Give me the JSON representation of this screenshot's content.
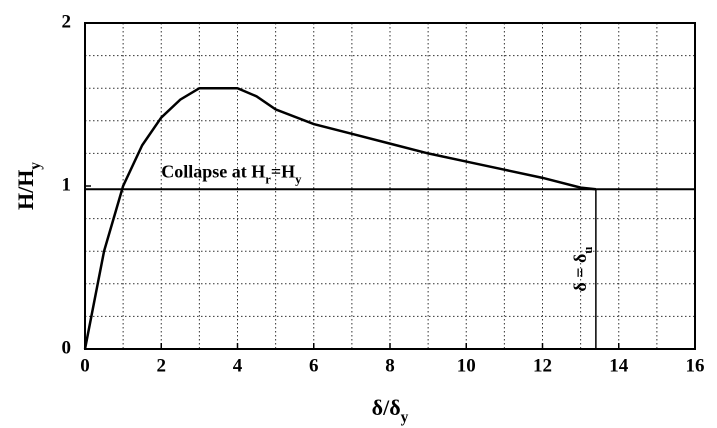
{
  "chart_data": {
    "type": "line",
    "x_label": [
      "δ/δ",
      "y"
    ],
    "y_label": [
      "H/H",
      "y"
    ],
    "xlim": [
      0,
      16
    ],
    "ylim": [
      0,
      2
    ],
    "xticks": [
      0,
      2,
      4,
      6,
      8,
      10,
      12,
      14,
      16
    ],
    "yticks": [
      0,
      1,
      2
    ],
    "xgrid": [
      1,
      2,
      3,
      4,
      5,
      6,
      7,
      8,
      9,
      10,
      11,
      12,
      13,
      14,
      15
    ],
    "ygrid": [
      0.2,
      0.4,
      0.6,
      0.8,
      1.2,
      1.4,
      1.6,
      1.8
    ],
    "grid": true,
    "series": [
      {
        "color": "#000000",
        "x": [
          0,
          0.5,
          1,
          1.5,
          2,
          2.5,
          3,
          3.5,
          4,
          4.5,
          5,
          6,
          7,
          8,
          9,
          10,
          11,
          12,
          13,
          13.4
        ],
        "values": [
          0,
          0.6,
          1.0,
          1.25,
          1.42,
          1.53,
          1.6,
          1.6,
          1.6,
          1.55,
          1.47,
          1.38,
          1.32,
          1.26,
          1.2,
          1.15,
          1.1,
          1.05,
          0.99,
          0.98
        ]
      }
    ],
    "collapse_level": 0.98,
    "collapse_label": [
      "Collapse at H",
      "r",
      "=H",
      "y"
    ],
    "ultimate_x": 13.4,
    "ultimate_label": [
      "δ = δ",
      "u"
    ]
  }
}
